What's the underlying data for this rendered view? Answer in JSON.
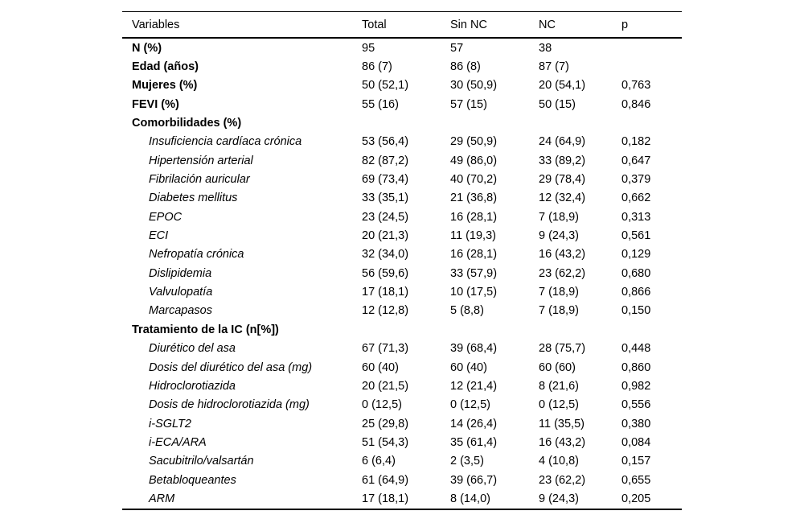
{
  "page": {
    "background_color": "#ffffff",
    "text_color": "#000000",
    "rule_color": "#000000"
  },
  "table": {
    "columns": [
      {
        "key": "label",
        "label": "Variables"
      },
      {
        "key": "total",
        "label": "Total"
      },
      {
        "key": "sin_nc",
        "label": "Sin NC"
      },
      {
        "key": "nc",
        "label": "NC"
      },
      {
        "key": "p",
        "label": "p"
      }
    ],
    "rows": [
      {
        "style": "variable",
        "label": "N (%)",
        "total": "95",
        "sin_nc": "57",
        "nc": "38",
        "p": ""
      },
      {
        "style": "variable",
        "label": "Edad (años)",
        "total": "86 (7)",
        "sin_nc": "86 (8)",
        "nc": "87 (7)",
        "p": ""
      },
      {
        "style": "variable",
        "label": "Mujeres (%)",
        "total": "50 (52,1)",
        "sin_nc": "30 (50,9)",
        "nc": "20 (54,1)",
        "p": "0,763"
      },
      {
        "style": "variable",
        "label": "FEVI (%)",
        "total": "55 (16)",
        "sin_nc": "57 (15)",
        "nc": "50 (15)",
        "p": "0,846"
      },
      {
        "style": "section",
        "label": "Comorbilidades (%)",
        "total": "",
        "sin_nc": "",
        "nc": "",
        "p": ""
      },
      {
        "style": "sub",
        "label": "Insuficiencia cardíaca crónica",
        "total": "53 (56,4)",
        "sin_nc": "29 (50,9)",
        "nc": "24 (64,9)",
        "p": "0,182"
      },
      {
        "style": "sub",
        "label": "Hipertensión arterial",
        "total": "82 (87,2)",
        "sin_nc": "49 (86,0)",
        "nc": "33 (89,2)",
        "p": "0,647"
      },
      {
        "style": "sub",
        "label": "Fibrilación auricular",
        "total": "69 (73,4)",
        "sin_nc": "40 (70,2)",
        "nc": "29 (78,4)",
        "p": "0,379"
      },
      {
        "style": "sub",
        "label": "Diabetes mellitus",
        "total": "33 (35,1)",
        "sin_nc": "21 (36,8)",
        "nc": "12 (32,4)",
        "p": "0,662"
      },
      {
        "style": "sub",
        "label": "EPOC",
        "total": "23 (24,5)",
        "sin_nc": "16 (28,1)",
        "nc": "7 (18,9)",
        "p": "0,313"
      },
      {
        "style": "sub",
        "label": "ECI",
        "total": "20 (21,3)",
        "sin_nc": "11 (19,3)",
        "nc": "9 (24,3)",
        "p": "0,561"
      },
      {
        "style": "sub",
        "label": "Nefropatía crónica",
        "total": "32 (34,0)",
        "sin_nc": "16 (28,1)",
        "nc": "16 (43,2)",
        "p": "0,129"
      },
      {
        "style": "sub",
        "label": "Dislipidemia",
        "total": "56 (59,6)",
        "sin_nc": "33 (57,9)",
        "nc": "23 (62,2)",
        "p": "0,680"
      },
      {
        "style": "sub",
        "label": "Valvulopatía",
        "total": "17 (18,1)",
        "sin_nc": "10 (17,5)",
        "nc": "7 (18,9)",
        "p": "0,866"
      },
      {
        "style": "sub",
        "label": "Marcapasos",
        "total": "12 (12,8)",
        "sin_nc": "5 (8,8)",
        "nc": "7 (18,9)",
        "p": "0,150"
      },
      {
        "style": "section",
        "label": "Tratamiento de la IC (n[%])",
        "total": "",
        "sin_nc": "",
        "nc": "",
        "p": ""
      },
      {
        "style": "sub",
        "label": "Diurético del asa",
        "total": "67 (71,3)",
        "sin_nc": "39 (68,4)",
        "nc": "28 (75,7)",
        "p": "0,448"
      },
      {
        "style": "sub",
        "label": "Dosis del diurético del asa (mg)",
        "total": "60 (40)",
        "sin_nc": "60 (40)",
        "nc": "60 (60)",
        "p": "0,860"
      },
      {
        "style": "sub",
        "label": "Hidroclorotiazida",
        "total": "20 (21,5)",
        "sin_nc": "12 (21,4)",
        "nc": "8 (21,6)",
        "p": "0,982"
      },
      {
        "style": "sub",
        "label": "Dosis de hidroclorotiazida (mg)",
        "total": "0 (12,5)",
        "sin_nc": "0 (12,5)",
        "nc": "0 (12,5)",
        "p": "0,556"
      },
      {
        "style": "sub",
        "label": "i-SGLT2",
        "total": "25 (29,8)",
        "sin_nc": "14 (26,4)",
        "nc": "11 (35,5)",
        "p": "0,380"
      },
      {
        "style": "sub",
        "label": "i-ECA/ARA",
        "total": "51 (54,3)",
        "sin_nc": "35 (61,4)",
        "nc": "16 (43,2)",
        "p": "0,084"
      },
      {
        "style": "sub",
        "label": "Sacubitrilo/valsartán",
        "total": "6 (6,4)",
        "sin_nc": "2 (3,5)",
        "nc": "4 (10,8)",
        "p": "0,157"
      },
      {
        "style": "sub",
        "label": "Betabloqueantes",
        "total": "61 (64,9)",
        "sin_nc": "39 (66,7)",
        "nc": "23 (62,2)",
        "p": "0,655"
      },
      {
        "style": "sub",
        "label": "ARM",
        "total": "17 (18,1)",
        "sin_nc": "8 (14,0)",
        "nc": "9 (24,3)",
        "p": "0,205"
      }
    ]
  }
}
